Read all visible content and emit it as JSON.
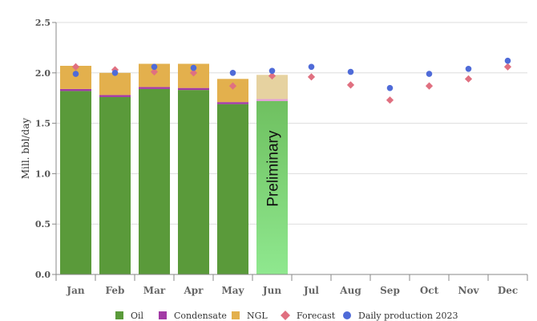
{
  "chart_data": {
    "type": "bar",
    "ylabel": "Mill. bbl/day",
    "ylim": [
      0,
      2.5
    ],
    "yticks": [
      0.0,
      0.5,
      1.0,
      1.5,
      2.0,
      2.5
    ],
    "ytick_labels": [
      "0.0",
      "0.5",
      "1.0",
      "1.5",
      "2.0",
      "2.5"
    ],
    "categories": [
      "Jan",
      "Feb",
      "Mar",
      "Apr",
      "May",
      "Jun",
      "Jul",
      "Aug",
      "Sep",
      "Oct",
      "Nov",
      "Dec"
    ],
    "stacked_series": [
      {
        "name": "Oil",
        "color": "#5a9a3a",
        "values": [
          1.82,
          1.76,
          1.84,
          1.83,
          1.69,
          1.72,
          null,
          null,
          null,
          null,
          null,
          null
        ]
      },
      {
        "name": "Condensate",
        "color": "#a23aa5",
        "values": [
          0.02,
          0.02,
          0.02,
          0.02,
          0.02,
          0.02,
          null,
          null,
          null,
          null,
          null,
          null
        ]
      },
      {
        "name": "NGL",
        "color": "#e3b04d",
        "values": [
          0.23,
          0.22,
          0.23,
          0.24,
          0.23,
          0.24,
          null,
          null,
          null,
          null,
          null,
          null
        ]
      }
    ],
    "point_series": [
      {
        "name": "Forecast",
        "marker": "diamond",
        "color": "#e07080",
        "values": [
          2.06,
          2.03,
          2.01,
          2.0,
          1.87,
          1.97,
          1.96,
          1.88,
          1.73,
          1.87,
          1.94,
          2.06
        ]
      },
      {
        "name": "Daily production 2023",
        "marker": "circle",
        "color": "#4f6bd8",
        "values": [
          1.99,
          2.0,
          2.06,
          2.05,
          2.0,
          2.02,
          2.06,
          2.01,
          1.85,
          1.99,
          2.04,
          2.12
        ]
      }
    ],
    "preliminary_index": 5,
    "annotation": "Preliminary",
    "legend": {
      "position": "bottom",
      "items": [
        "Oil",
        "Condensate",
        "NGL",
        "Forecast",
        "Daily production 2023"
      ]
    },
    "grid": true
  },
  "colors": {
    "grid": "#dddddd",
    "axis": "#888888",
    "prelim_top": "#86e686",
    "prelim_bottom": "#6cbf5a",
    "prelim_ngl": "#e6d2a0",
    "prelim_condensate": "#e2a0d6"
  }
}
